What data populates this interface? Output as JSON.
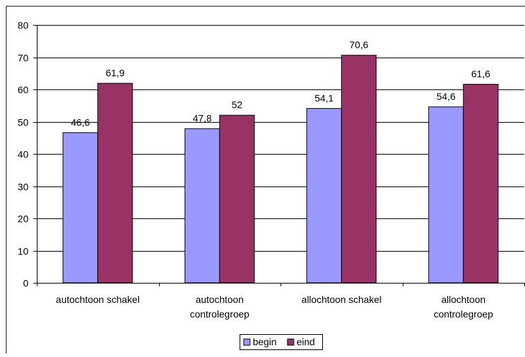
{
  "chart_data": {
    "type": "bar",
    "title": "",
    "xlabel": "",
    "ylabel": "",
    "categories": [
      [
        "autochtoon schakel"
      ],
      [
        "autochtoon",
        "controlegroep"
      ],
      [
        "allochtoon schakel"
      ],
      [
        "allochtoon",
        "controlegroep"
      ]
    ],
    "series": [
      {
        "name": "begin",
        "color": "#9999ff",
        "values": [
          46.6,
          47.8,
          54.1,
          54.6
        ],
        "labels": [
          "46,6",
          "47,8",
          "54,1",
          "54,6"
        ]
      },
      {
        "name": "eind",
        "color": "#993366",
        "values": [
          61.9,
          52,
          70.6,
          61.6
        ],
        "labels": [
          "61,9",
          "52",
          "70,6",
          "61,6"
        ]
      }
    ],
    "ylim": [
      0,
      80
    ],
    "yticks": [
      0,
      10,
      20,
      30,
      40,
      50,
      60,
      70,
      80
    ],
    "grid": true,
    "legend_position": "bottom"
  }
}
